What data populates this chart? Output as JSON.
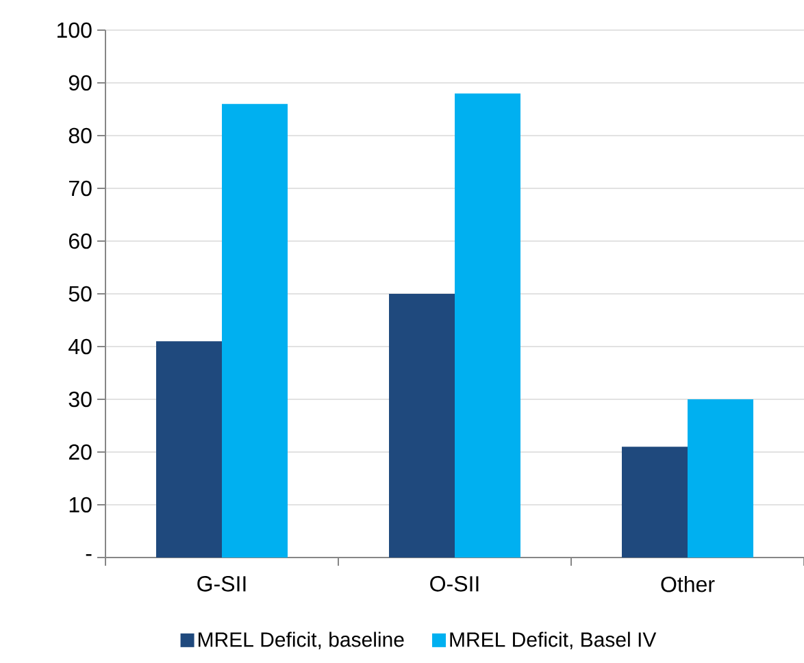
{
  "chart_data": {
    "type": "bar",
    "categories": [
      "G-SII",
      "O-SII",
      "Other"
    ],
    "series": [
      {
        "name": "MREL Deficit, baseline",
        "color": "#1f497d",
        "values": [
          41,
          50,
          21
        ]
      },
      {
        "name": "MREL Deficit, Basel IV",
        "color": "#00b0f0",
        "values": [
          86,
          88,
          30
        ]
      }
    ],
    "ylim": [
      0,
      100
    ],
    "yticks": [
      {
        "value": 0,
        "label": "-"
      },
      10,
      20,
      30,
      40,
      50,
      60,
      70,
      80,
      90,
      100
    ],
    "grid": "y",
    "legend": "bottom"
  }
}
